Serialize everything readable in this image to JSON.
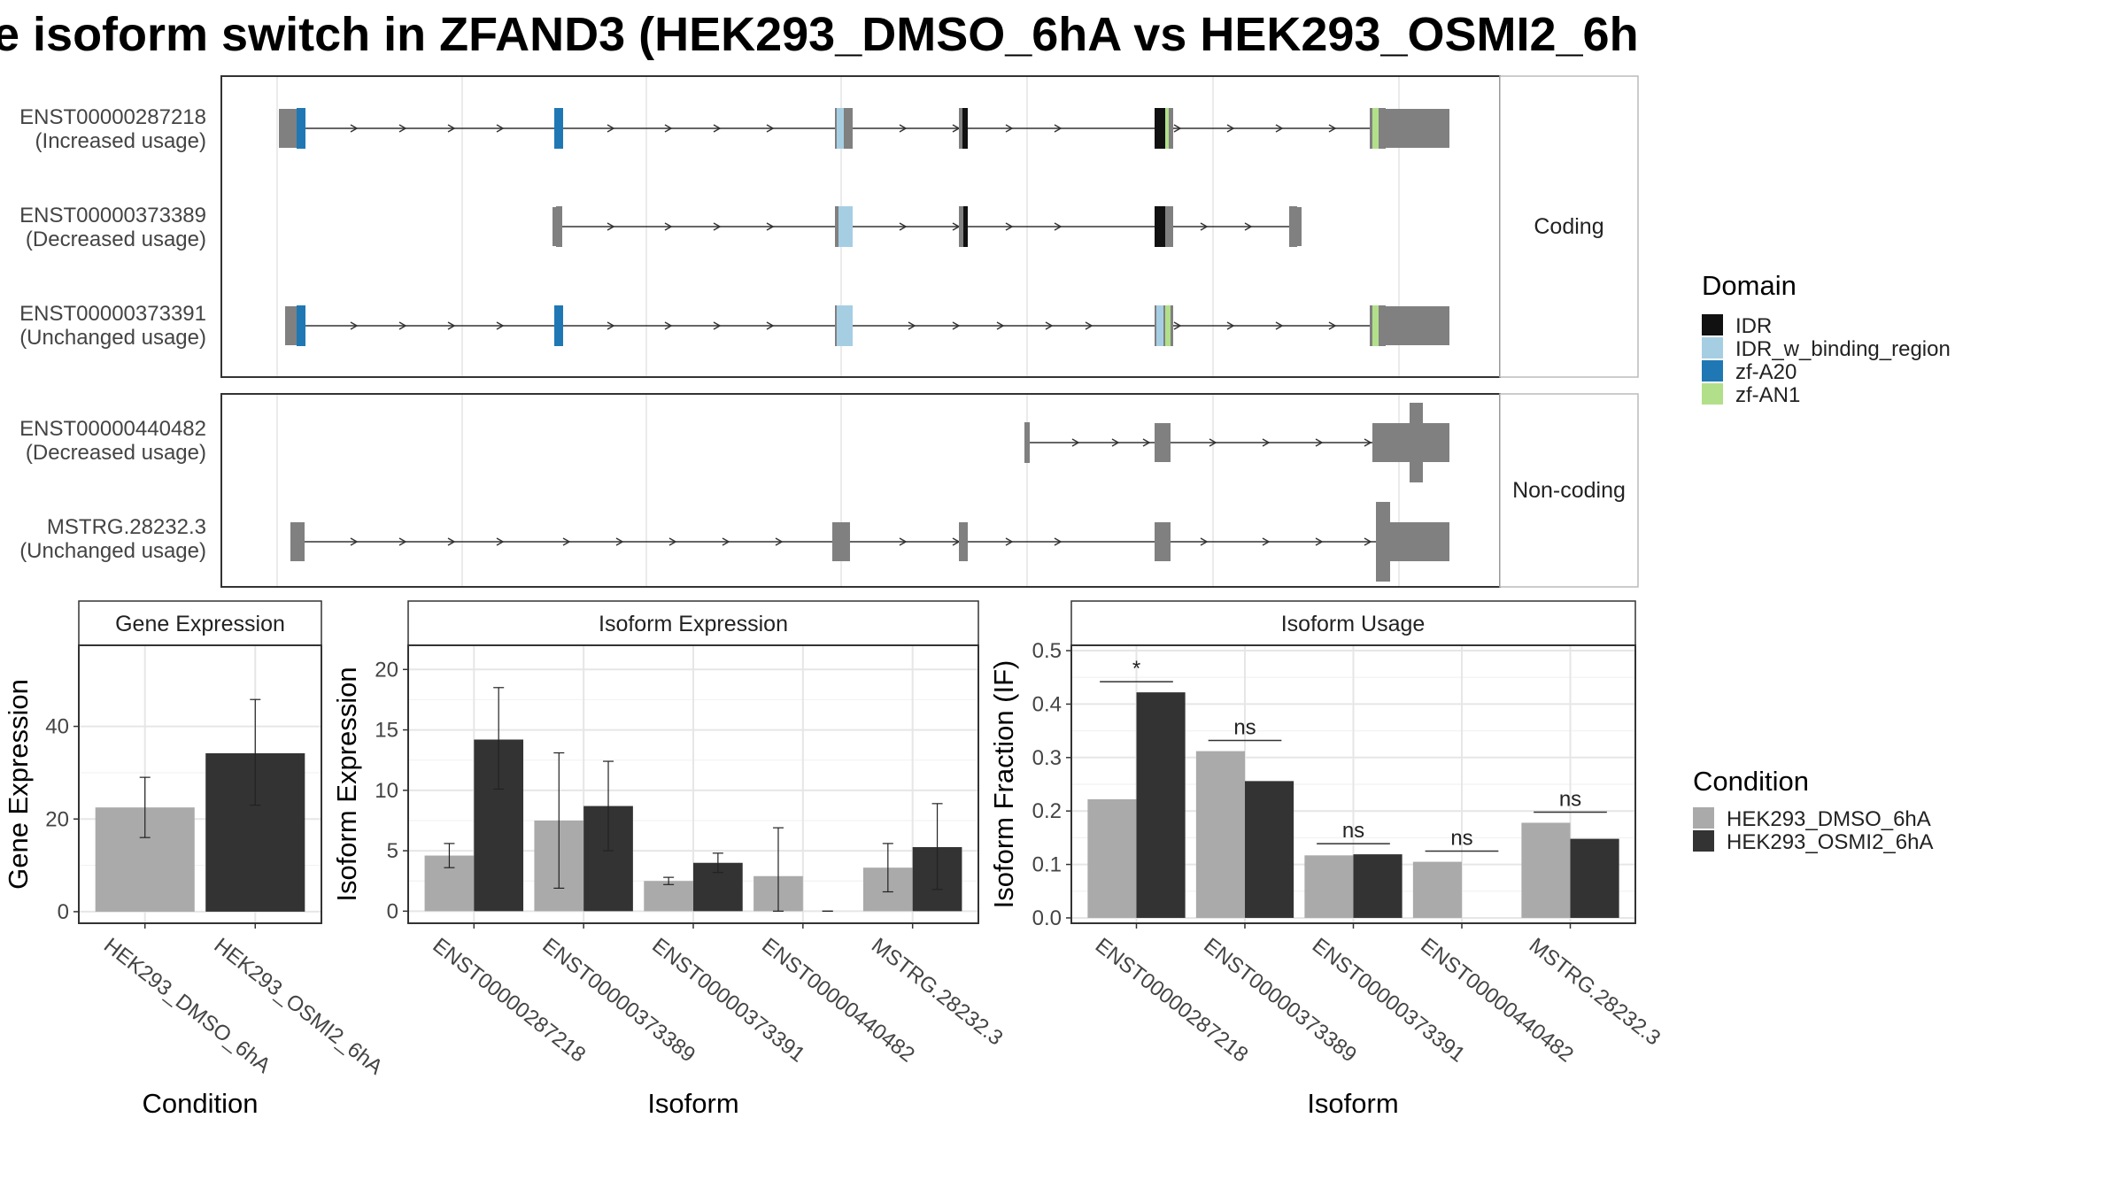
{
  "title": "e isoform switch in ZFAND3 (HEK293_DMSO_6hA vs HEK293_OSMI2_6h",
  "structure": {
    "strips": {
      "coding": "Coding",
      "noncoding": "Non-coding"
    },
    "coding": [
      {
        "id": "ENST00000287218",
        "usage": "(Increased usage)"
      },
      {
        "id": "ENST00000373389",
        "usage": "(Decreased usage)"
      },
      {
        "id": "ENST00000373391",
        "usage": "(Unchanged usage)"
      }
    ],
    "noncoding": [
      {
        "id": "ENST00000440482",
        "usage": "(Decreased usage)"
      },
      {
        "id": "MSTRG.28232.3",
        "usage": "(Unchanged usage)"
      }
    ]
  },
  "legend_domain": {
    "title": "Domain",
    "items": [
      {
        "label": "IDR",
        "color": "#111111"
      },
      {
        "label": "IDR_w_binding_region",
        "color": "#a6cee3"
      },
      {
        "label": "zf-A20",
        "color": "#1f78b4"
      },
      {
        "label": "zf-AN1",
        "color": "#b2df8a"
      }
    ]
  },
  "legend_condition": {
    "title": "Condition",
    "items": [
      {
        "label": "HEK293_DMSO_6hA",
        "color": "#aaaaaa"
      },
      {
        "label": "HEK293_OSMI2_6hA",
        "color": "#333333"
      }
    ]
  },
  "chart_data": [
    {
      "type": "bar",
      "panel": "Gene Expression",
      "xlabel": "Condition",
      "ylabel": "Gene Expression",
      "categories": [
        "HEK293_DMSO_6hA",
        "HEK293_OSMI2_6hA"
      ],
      "values": [
        22.5,
        34.2
      ],
      "errors": [
        [
          16,
          29
        ],
        [
          23,
          45.8
        ]
      ],
      "yticks": [
        0,
        20,
        40
      ],
      "ylim": [
        -2.5,
        57.5
      ],
      "grid": true
    },
    {
      "type": "bar",
      "panel": "Isoform Expression",
      "xlabel": "Isoform",
      "ylabel": "Isoform Expression",
      "categories": [
        "ENST00000287218",
        "ENST00000373389",
        "ENST00000373391",
        "ENST00000440482",
        "MSTRG.28232.3"
      ],
      "series": [
        {
          "name": "HEK293_DMSO_6hA",
          "values": [
            4.6,
            7.5,
            2.5,
            2.9,
            3.6
          ],
          "errors": [
            [
              3.6,
              5.6
            ],
            [
              1.9,
              13.1
            ],
            [
              2.2,
              2.8
            ],
            [
              0.0,
              6.9
            ],
            [
              1.6,
              5.6
            ]
          ]
        },
        {
          "name": "HEK293_OSMI2_6hA",
          "values": [
            14.2,
            8.7,
            4.0,
            0.0,
            5.3
          ],
          "errors": [
            [
              10.1,
              18.5
            ],
            [
              5.0,
              12.4
            ],
            [
              3.2,
              4.8
            ],
            [
              0.0,
              0.0
            ],
            [
              1.8,
              8.9
            ]
          ]
        }
      ],
      "yticks": [
        0,
        5,
        10,
        15,
        20
      ],
      "ylim": [
        -1,
        22
      ],
      "grid": true
    },
    {
      "type": "bar",
      "panel": "Isoform Usage",
      "xlabel": "Isoform",
      "ylabel": "Isoform Fraction (IF)",
      "categories": [
        "ENST00000287218",
        "ENST00000373389",
        "ENST00000373391",
        "ENST00000440482",
        "MSTRG.28232.3"
      ],
      "series": [
        {
          "name": "HEK293_DMSO_6hA",
          "values": [
            0.222,
            0.312,
            0.117,
            0.105,
            0.178
          ]
        },
        {
          "name": "HEK293_OSMI2_6hA",
          "values": [
            0.422,
            0.256,
            0.119,
            0.0,
            0.148
          ]
        }
      ],
      "annotations": [
        "*",
        "ns",
        "ns",
        "ns",
        "ns"
      ],
      "yticks": [
        0.0,
        0.1,
        0.2,
        0.3,
        0.4,
        0.5
      ],
      "tick_labels": [
        "0.0",
        "0.1",
        "0.2",
        "0.3",
        "0.4",
        "0.5"
      ],
      "ylim": [
        -0.01,
        0.51
      ],
      "grid": true
    }
  ]
}
